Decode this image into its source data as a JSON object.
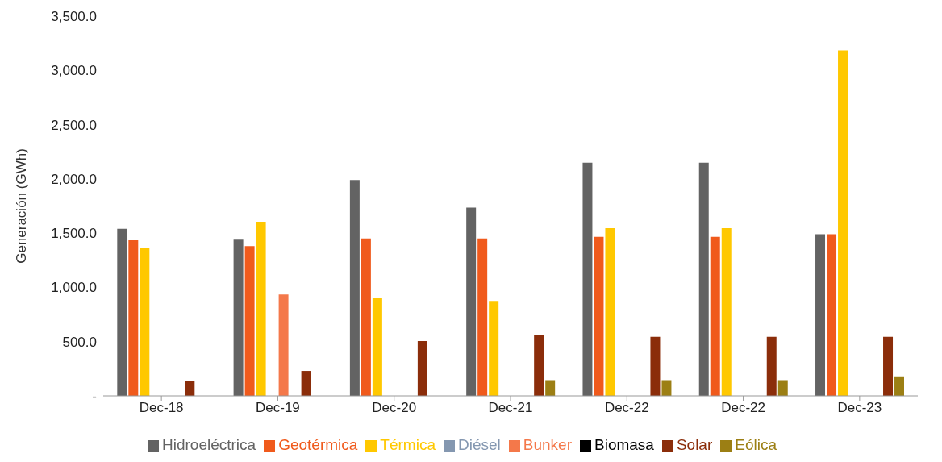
{
  "chart_data": {
    "type": "bar",
    "ylabel": "Generación (GWh)",
    "categories": [
      "Dec-18",
      "Dec-19",
      "Dec-20",
      "Dec-21",
      "Dec-22",
      "Dec-22",
      "Dec-23"
    ],
    "series": [
      {
        "name": "Hidroeléctrica",
        "color": "#636363",
        "values": [
          1540,
          1440,
          1990,
          1735,
          2150,
          2150,
          1490
        ]
      },
      {
        "name": "Geotérmica",
        "color": "#f05a1c",
        "values": [
          1435,
          1380,
          1450,
          1450,
          1465,
          1465,
          1490
        ]
      },
      {
        "name": "Térmica",
        "color": "#ffc800",
        "values": [
          1360,
          1605,
          900,
          875,
          1545,
          1545,
          3185
        ]
      },
      {
        "name": "Diésel",
        "color": "#8497b0",
        "values": [
          null,
          null,
          null,
          null,
          null,
          null,
          null
        ]
      },
      {
        "name": "Bunker",
        "color": "#f4784a",
        "values": [
          null,
          935,
          null,
          null,
          null,
          null,
          null
        ]
      },
      {
        "name": "Biomasa",
        "color": "#000000",
        "values": [
          null,
          null,
          null,
          null,
          null,
          null,
          null
        ]
      },
      {
        "name": "Solar",
        "color": "#8b2d0a",
        "values": [
          135,
          230,
          505,
          565,
          545,
          545,
          545
        ]
      },
      {
        "name": "Eólica",
        "color": "#9c7f14",
        "values": [
          null,
          null,
          null,
          145,
          145,
          145,
          180
        ]
      }
    ],
    "ylim": [
      0,
      3500
    ],
    "yticks": [
      {
        "value": 0,
        "label": "-"
      },
      {
        "value": 500,
        "label": "500.0"
      },
      {
        "value": 1000,
        "label": "1,000.0"
      },
      {
        "value": 1500,
        "label": "1,500.0"
      },
      {
        "value": 2000,
        "label": "2,000.0"
      },
      {
        "value": 2500,
        "label": "2,500.0"
      },
      {
        "value": 3000,
        "label": "3,000.0"
      },
      {
        "value": 3500,
        "label": "3,500.0"
      }
    ],
    "grid": false,
    "legend": "bottom"
  }
}
